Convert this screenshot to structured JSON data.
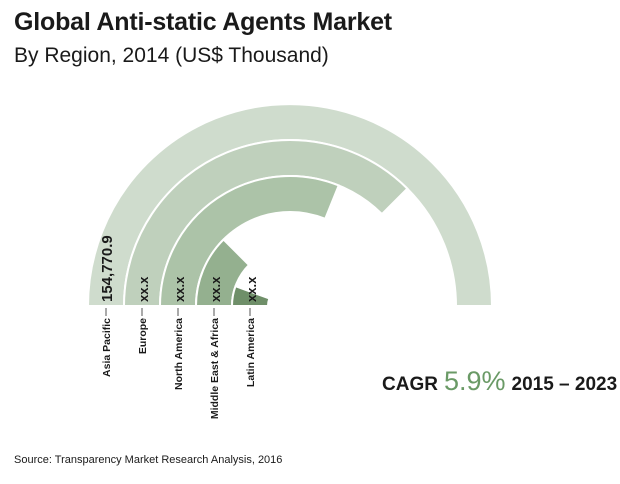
{
  "chart_data": {
    "type": "radial-bar",
    "title": "Global Anti-static Agents Market",
    "subtitle": "By Region, 2014 (US$ Thousand)",
    "categories": [
      "Asia Pacific",
      "Europe",
      "North America",
      "Middle East & Africa",
      "Latin America"
    ],
    "value_labels": [
      "154,770.9",
      "xx.x",
      "xx.x",
      "xx.x",
      "xx.x"
    ],
    "sweep_degrees": [
      180,
      135,
      112,
      45,
      20
    ],
    "colors": [
      "#cfdccd",
      "#bfd0bc",
      "#acc3a8",
      "#94b08f",
      "#6f8f69"
    ]
  },
  "cagr": {
    "label": "CAGR",
    "value": "5.9%",
    "period": "2015 – 2023",
    "value_color": "#6a9a66"
  },
  "source": "Source: Transparency Market Research Analysis, 2016"
}
